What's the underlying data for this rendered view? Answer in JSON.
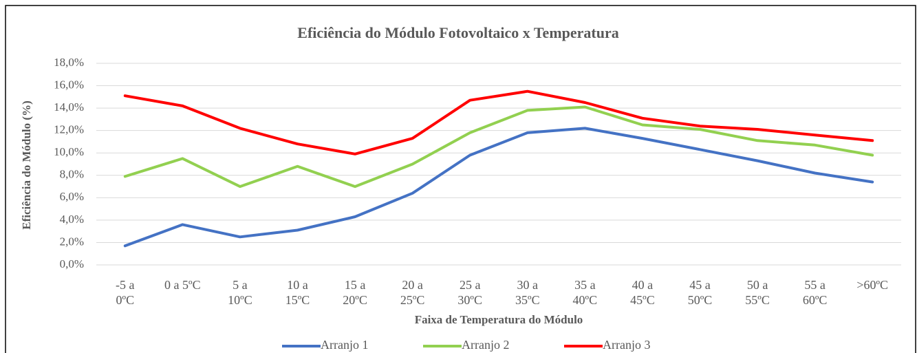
{
  "chart_data": {
    "type": "line",
    "title": "Eficiência do Módulo Fotovoltaico x Temperatura",
    "x_label": "Faixa de Temperatura do Módulo",
    "y_label": "Eficiência do Módulo (%)",
    "categories": [
      "-5 a 0ºC",
      "0 a 5ºC",
      "5 a 10ºC",
      "10 a 15ºC",
      "15 a 20ºC",
      "20 a 25ºC",
      "25 a 30ºC",
      "30 a 35ºC",
      "35 a 40ºC",
      "40 a 45ºC",
      "45 a 50ºC",
      "50 a 55ºC",
      "55 a 60ºC",
      ">60ºC"
    ],
    "series": [
      {
        "name": "Arranjo 1",
        "color": "#4472c4",
        "values": [
          1.7,
          3.6,
          2.5,
          3.1,
          4.3,
          6.4,
          9.8,
          11.8,
          12.2,
          11.3,
          10.3,
          9.3,
          8.2,
          7.4
        ]
      },
      {
        "name": "Arranjo 2",
        "color": "#92d050",
        "values": [
          7.9,
          9.5,
          7.0,
          8.8,
          7.0,
          9.0,
          11.8,
          13.8,
          14.1,
          12.5,
          12.1,
          11.1,
          10.7,
          9.8
        ]
      },
      {
        "name": "Arranjo 3",
        "color": "#ff0000",
        "values": [
          15.1,
          14.2,
          12.2,
          10.8,
          9.9,
          11.3,
          14.7,
          15.5,
          14.5,
          13.1,
          12.4,
          12.1,
          11.6,
          11.1
        ]
      }
    ],
    "ylim": [
      0,
      18
    ],
    "yticks": [
      {
        "value": 0,
        "label": "0,0%"
      },
      {
        "value": 2,
        "label": "2,0%"
      },
      {
        "value": 4,
        "label": "4,0%"
      },
      {
        "value": 6,
        "label": "6,0%"
      },
      {
        "value": 8,
        "label": "8,0%"
      },
      {
        "value": 10,
        "label": "10,0%"
      },
      {
        "value": 12,
        "label": "12,0%"
      },
      {
        "value": 14,
        "label": "14,0%"
      },
      {
        "value": 16,
        "label": "16,0%"
      },
      {
        "value": 18,
        "label": "18,0%"
      }
    ],
    "grid": true,
    "legend": "bottom"
  }
}
